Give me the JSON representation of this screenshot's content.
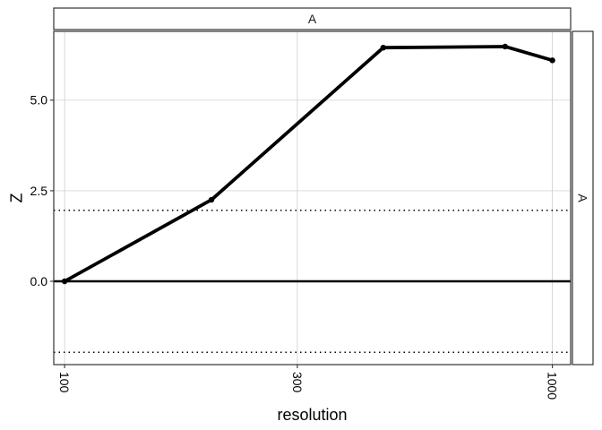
{
  "chart_data": {
    "type": "line",
    "title": "",
    "facet_strip_top": "A",
    "facet_strip_right": "A",
    "xlabel": "resolution",
    "ylabel": "Z",
    "x_scale": "log10",
    "xlim": [
      95,
      1090
    ],
    "ylim": [
      -2.3,
      6.9
    ],
    "x_ticks": [
      100,
      300,
      1000
    ],
    "x_tick_labels": [
      "100",
      "300",
      "1000"
    ],
    "y_ticks": [
      0,
      2.5,
      5
    ],
    "y_tick_labels": [
      "0.0",
      "2.5",
      "5.0"
    ],
    "reference_lines": [
      {
        "y": 0,
        "style": "solid"
      },
      {
        "y": 1.96,
        "style": "dotted"
      },
      {
        "y": -1.96,
        "style": "dotted"
      }
    ],
    "grid": true,
    "series": [
      {
        "x": [
          100,
          200,
          450,
          800,
          1000
        ],
        "y": [
          0.0,
          2.25,
          6.45,
          6.48,
          6.1
        ]
      }
    ]
  }
}
